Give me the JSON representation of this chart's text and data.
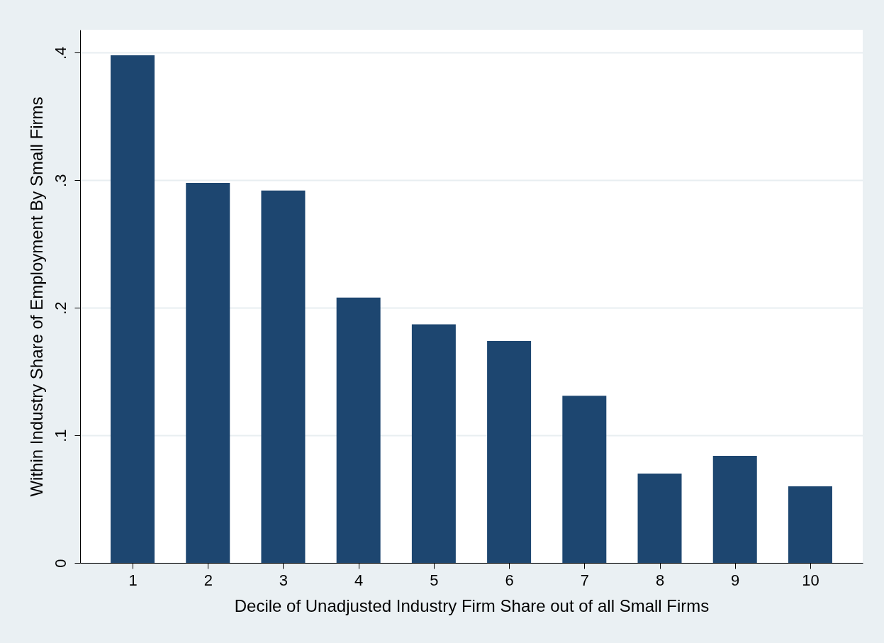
{
  "chart_data": {
    "type": "bar",
    "xlabel": "Decile of Unadjusted Industry Firm Share out of all Small Firms",
    "ylabel": "Within Industry Share of Employment By Small Firms",
    "categories": [
      "1",
      "2",
      "3",
      "4",
      "5",
      "6",
      "7",
      "8",
      "9",
      "10"
    ],
    "values": [
      0.398,
      0.298,
      0.292,
      0.208,
      0.187,
      0.174,
      0.131,
      0.07,
      0.084,
      0.06
    ],
    "color": "#1d4670",
    "ylim": [
      0,
      0.418
    ],
    "yticks": [
      0,
      {
        "value": 0.1,
        "label": ".1"
      },
      {
        "value": 0.2,
        "label": ".2"
      },
      {
        "value": 0.3,
        "label": ".3"
      },
      {
        "value": 0.4,
        "label": ".4"
      }
    ],
    "grid": "y"
  }
}
